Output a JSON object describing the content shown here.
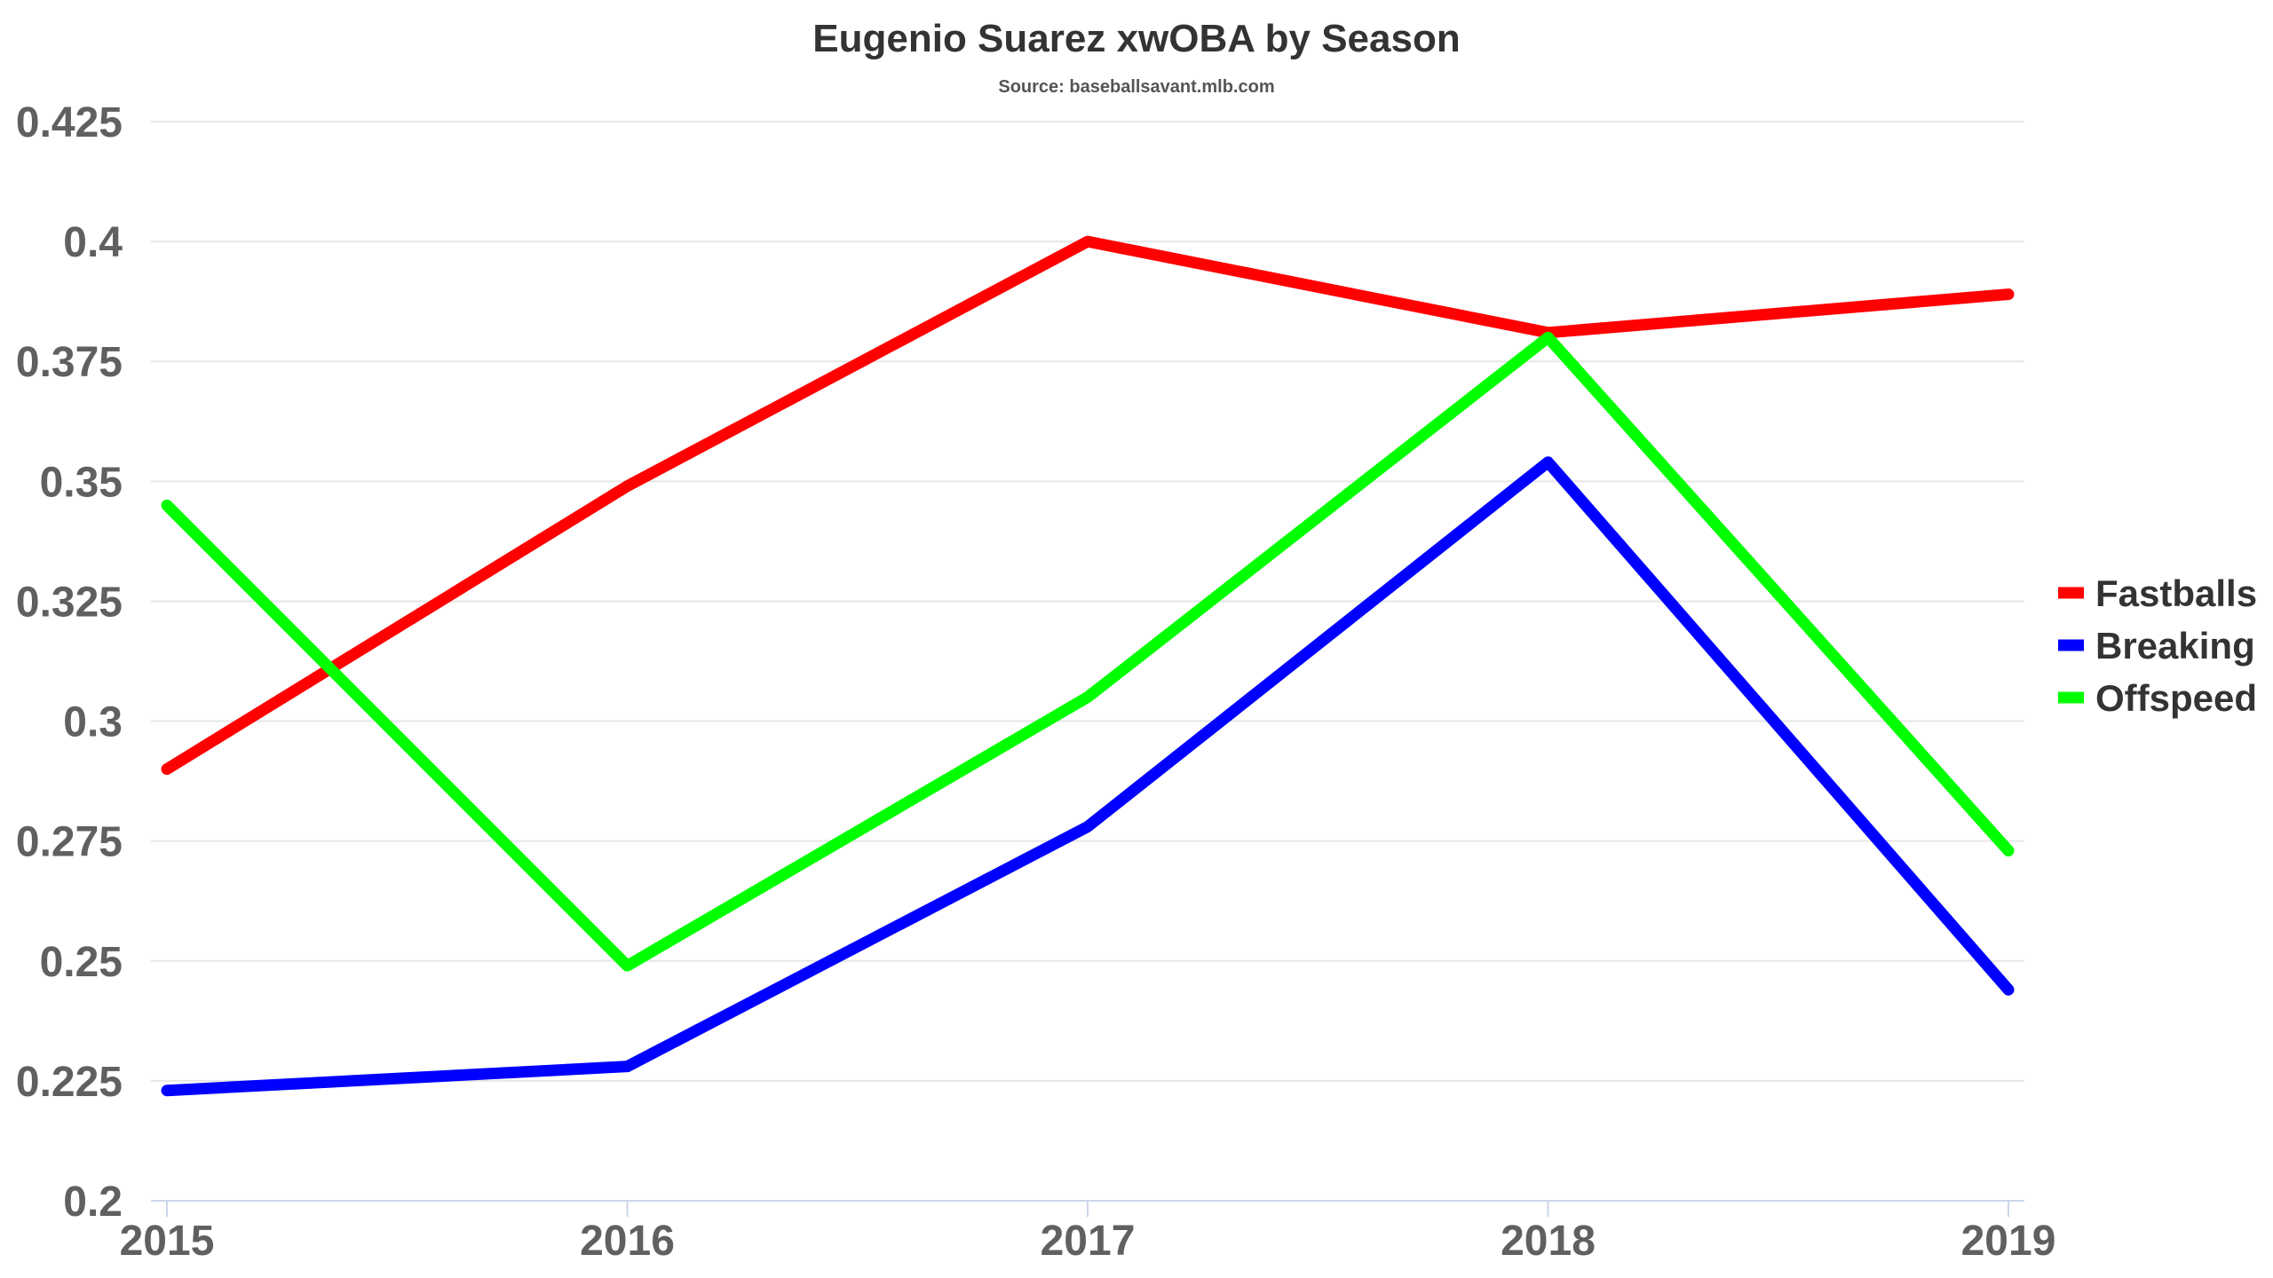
{
  "chart_data": {
    "type": "line",
    "title": "Eugenio Suarez xwOBA by Season",
    "subtitle": "Source: baseballsavant.mlb.com",
    "xlabel": "",
    "ylabel": "",
    "x": [
      "2015",
      "2016",
      "2017",
      "2018",
      "2019"
    ],
    "ylim": [
      0.2,
      0.425
    ],
    "yticks": [
      "0.2",
      "0.225",
      "0.25",
      "0.275",
      "0.3",
      "0.325",
      "0.35",
      "0.375",
      "0.4",
      "0.425"
    ],
    "grid": true,
    "legend_position": "right",
    "series": [
      {
        "name": "Fastballs",
        "color": "#ff0000",
        "values": [
          0.29,
          0.349,
          0.4,
          0.381,
          0.389
        ]
      },
      {
        "name": "Breaking",
        "color": "#0000ff",
        "values": [
          0.223,
          0.228,
          0.278,
          0.354,
          0.244
        ]
      },
      {
        "name": "Offspeed",
        "color": "#00ff00",
        "values": [
          0.345,
          0.249,
          0.305,
          0.38,
          0.273
        ]
      }
    ]
  }
}
